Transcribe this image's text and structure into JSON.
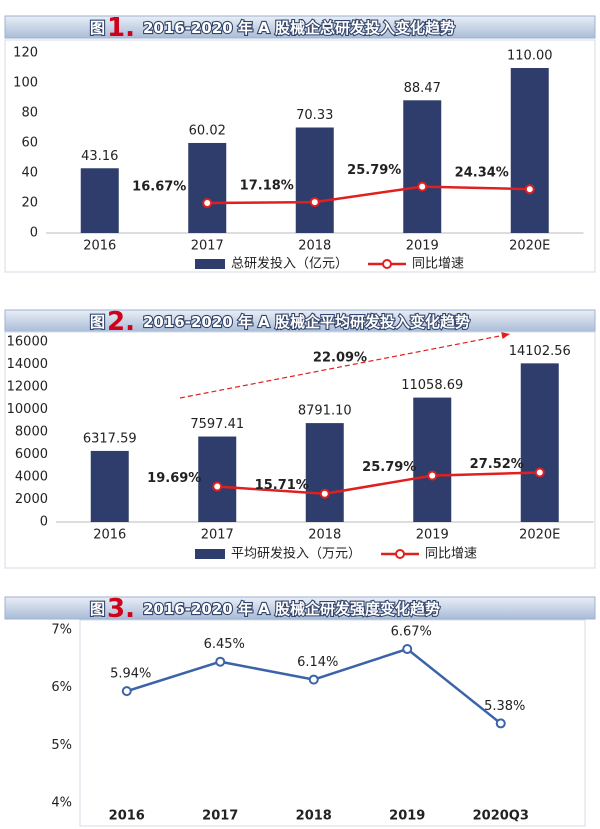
{
  "chart_data": [
    {
      "type": "bar",
      "figure_label": "图",
      "figure_number": "1.",
      "title": "2016-2020 年 A 股械企总研发投入变化趋势",
      "categories": [
        "2016",
        "2017",
        "2018",
        "2019",
        "2020E"
      ],
      "series": [
        {
          "name": "总研发投入（亿元）",
          "color": "#2f3d6c",
          "values": [
            43.16,
            60.02,
            70.33,
            88.47,
            110.0
          ],
          "value_labels": [
            "43.16",
            "60.02",
            "70.33",
            "88.47",
            "110.00"
          ]
        },
        {
          "name": "同比增速",
          "color": "#e0201f",
          "type": "line",
          "axis": "y2",
          "values": [
            null,
            16.67,
            17.18,
            25.79,
            24.34
          ],
          "value_labels": [
            null,
            "16.67%",
            "17.18%",
            "25.79%",
            "24.34%"
          ]
        }
      ],
      "ylim": [
        0,
        120
      ],
      "yticks": [
        0,
        20,
        40,
        60,
        80,
        100,
        120
      ],
      "y2lim": [
        0,
        100
      ],
      "grid": false,
      "legend": "bottom"
    },
    {
      "type": "bar",
      "figure_label": "图",
      "figure_number": "2.",
      "title": "2016-2020 年 A 股械企平均研发投入变化趋势",
      "categories": [
        "2016",
        "2017",
        "2018",
        "2019",
        "2020E"
      ],
      "series": [
        {
          "name": "平均研发投入（万元）",
          "color": "#2f3d6c",
          "values": [
            6317.59,
            7597.41,
            8791.1,
            11058.69,
            14102.56
          ],
          "value_labels": [
            "6317.59",
            "7597.41",
            "8791.10",
            "11058.69",
            "14102.56"
          ]
        },
        {
          "name": "同比增速",
          "color": "#e0201f",
          "type": "line",
          "axis": "y2",
          "values": [
            null,
            19.69,
            15.71,
            25.79,
            27.52
          ],
          "value_labels": [
            null,
            "19.69%",
            "15.71%",
            "25.79%",
            "27.52%"
          ]
        }
      ],
      "annotation": "22.09%",
      "ylim": [
        0,
        16000
      ],
      "yticks": [
        0,
        2000,
        4000,
        6000,
        8000,
        10000,
        12000,
        14000,
        16000
      ],
      "y2lim": [
        0,
        100
      ],
      "grid": false,
      "legend": "bottom"
    },
    {
      "type": "line",
      "figure_label": "图",
      "figure_number": "3.",
      "title": "2016-2020 年 A 股械企研发强度变化趋势",
      "categories": [
        "2016",
        "2017",
        "2018",
        "2019",
        "2020Q3"
      ],
      "color": "#3b63a8",
      "values": [
        5.94,
        6.45,
        6.14,
        6.67,
        5.38
      ],
      "value_labels": [
        "5.94%",
        "6.45%",
        "6.14%",
        "6.67%",
        "5.38%"
      ],
      "ylim": [
        4,
        7
      ],
      "yticks": [
        {
          "value": 4,
          "label": "4%"
        },
        {
          "value": 5,
          "label": "5%"
        },
        {
          "value": 6,
          "label": "6%"
        },
        {
          "value": 7,
          "label": "7%"
        }
      ],
      "grid": false
    }
  ]
}
